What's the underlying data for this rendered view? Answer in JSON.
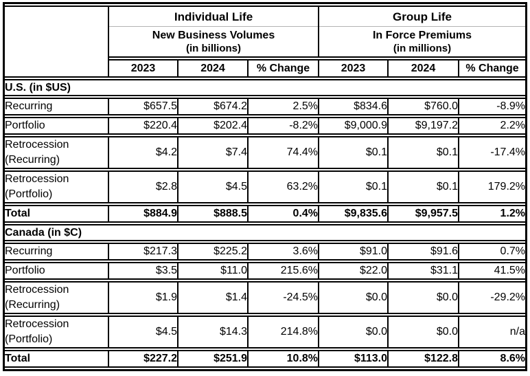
{
  "chart_data": {
    "type": "table",
    "groups": [
      {
        "title": "Individual Life",
        "subtitle": "New Business Volumes",
        "unit": "(in billions)"
      },
      {
        "title": "Group Life",
        "subtitle": "In Force Premiums",
        "unit": "(in millions)"
      }
    ],
    "year_headers": [
      "2023",
      "2024",
      "% Change",
      "2023",
      "2024",
      "% Change"
    ],
    "sections": [
      {
        "label": "U.S. (in $US)",
        "rows": [
          {
            "label": "Recurring",
            "values": [
              "$657.5",
              "$674.2",
              "2.5%",
              "$834.6",
              "$760.0",
              "-8.9%"
            ],
            "bold": false,
            "tall": false
          },
          {
            "label": "Portfolio",
            "values": [
              "$220.4",
              "$202.4",
              "-8.2%",
              "$9,000.9",
              "$9,197.2",
              "2.2%"
            ],
            "bold": false,
            "tall": false
          },
          {
            "label": "Retrocession\n(Recurring)",
            "values": [
              "$4.2",
              "$7.4",
              "74.4%",
              "$0.1",
              "$0.1",
              "-17.4%"
            ],
            "bold": false,
            "tall": true
          },
          {
            "label": "Retrocession\n(Portfolio)",
            "values": [
              "$2.8",
              "$4.5",
              "63.2%",
              "$0.1",
              "$0.1",
              "179.2%"
            ],
            "bold": false,
            "tall": true
          },
          {
            "label": "Total",
            "values": [
              "$884.9",
              "$888.5",
              "0.4%",
              "$9,835.6",
              "$9,957.5",
              "1.2%"
            ],
            "bold": true,
            "tall": false
          }
        ]
      },
      {
        "label": "Canada (in $C)",
        "rows": [
          {
            "label": "Recurring",
            "values": [
              "$217.3",
              "$225.2",
              "3.6%",
              "$91.0",
              "$91.6",
              "0.7%"
            ],
            "bold": false,
            "tall": false
          },
          {
            "label": "Portfolio",
            "values": [
              "$3.5",
              "$11.0",
              "215.6%",
              "$22.0",
              "$31.1",
              "41.5%"
            ],
            "bold": false,
            "tall": false
          },
          {
            "label": "Retrocession\n(Recurring)",
            "values": [
              "$1.9",
              "$1.4",
              "-24.5%",
              "$0.0",
              "$0.0",
              "-29.2%"
            ],
            "bold": false,
            "tall": true
          },
          {
            "label": "Retrocession\n(Portfolio)",
            "values": [
              "$4.5",
              "$14.3",
              "214.8%",
              "$0.0",
              "$0.0",
              "n/a"
            ],
            "bold": false,
            "tall": true
          },
          {
            "label": "Total",
            "values": [
              "$227.2",
              "$251.9",
              "10.8%",
              "$113.0",
              "$122.8",
              "8.6%"
            ],
            "bold": true,
            "tall": false
          }
        ]
      }
    ],
    "colors": {
      "border": "#000000",
      "header_divider": "#b3b3b3",
      "background": "#ffffff"
    }
  }
}
